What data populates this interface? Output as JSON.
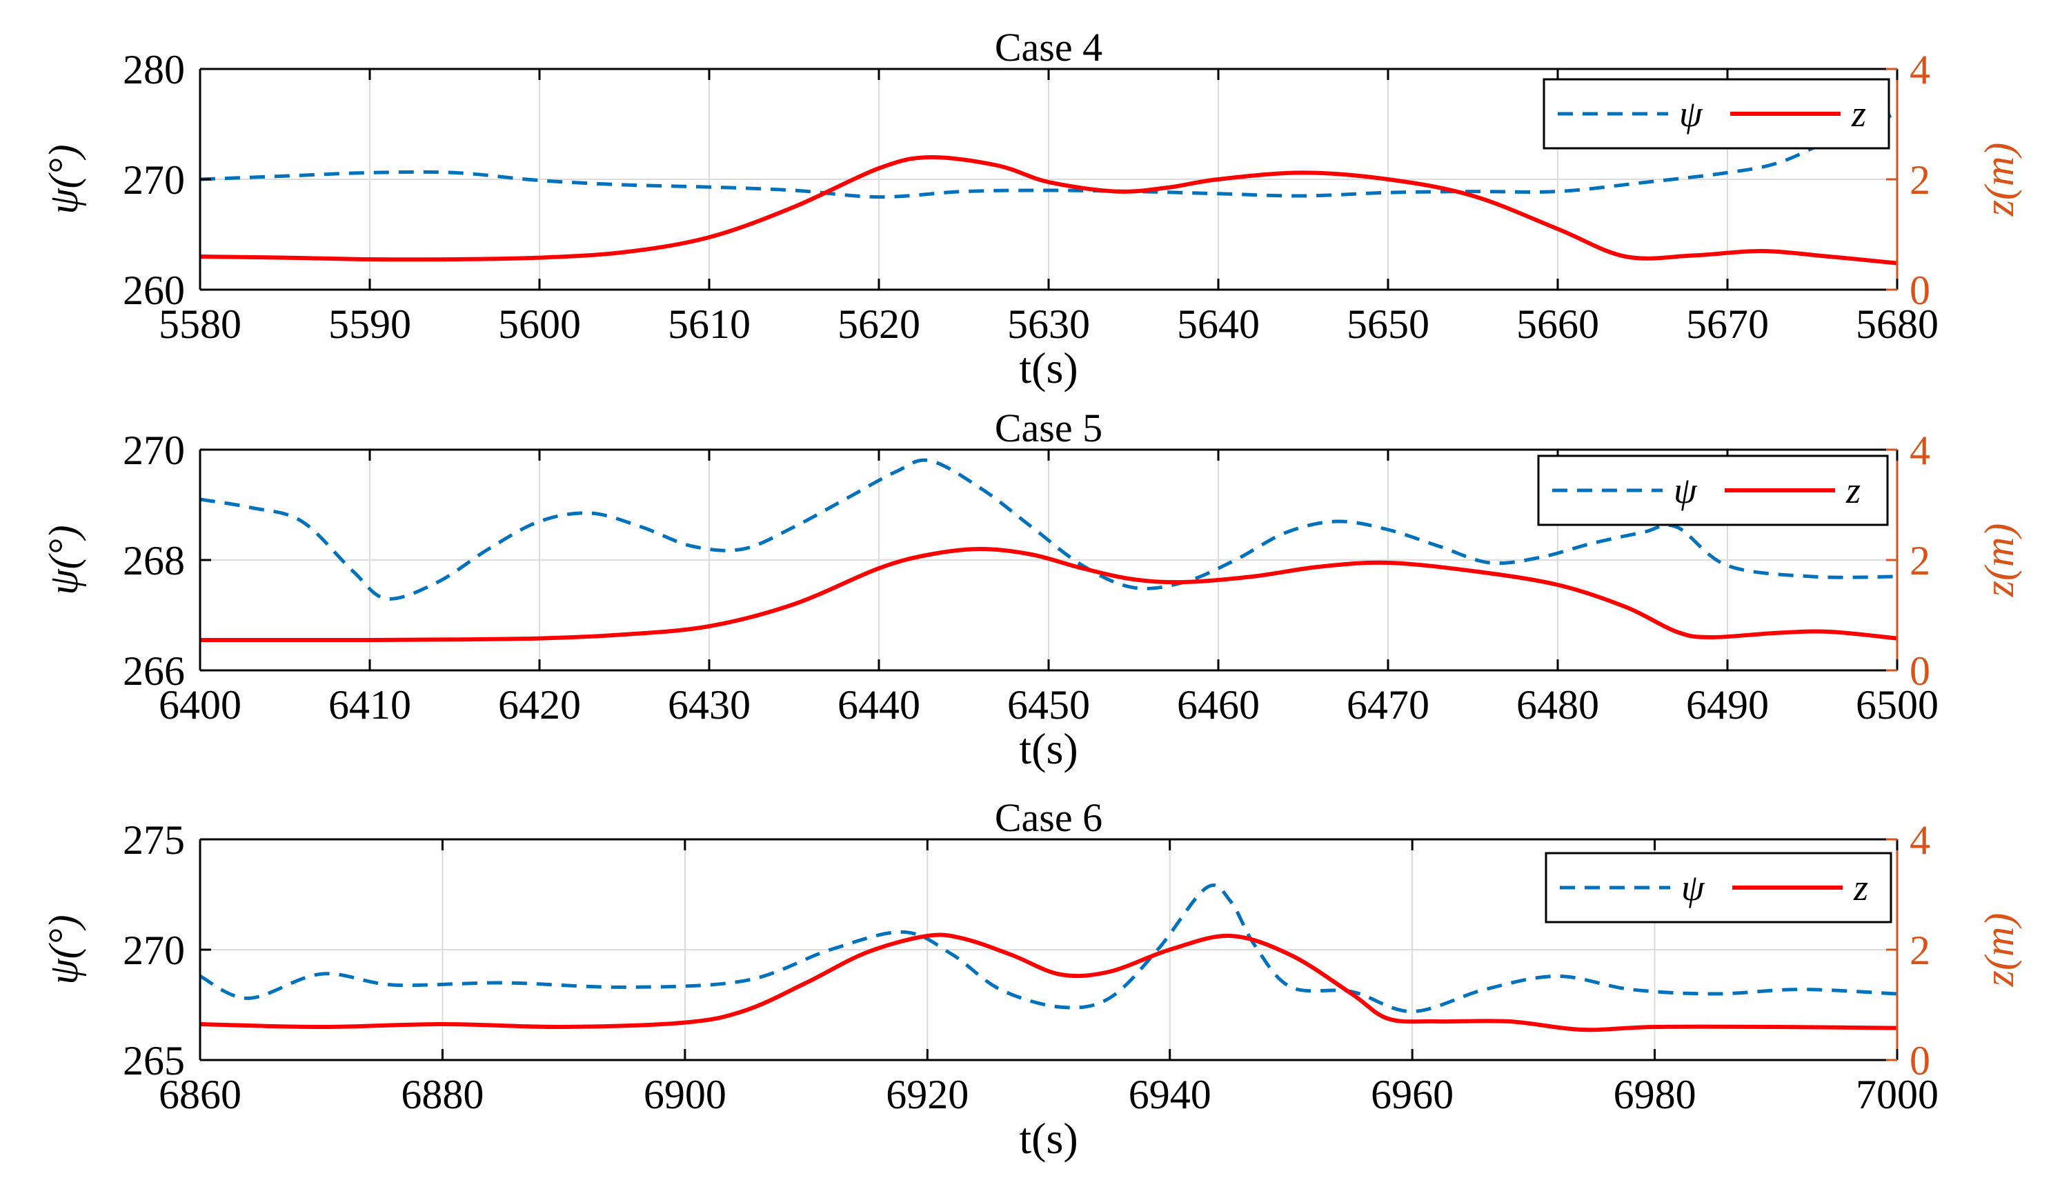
{
  "chart_data": [
    {
      "type": "line",
      "title": "Case 4",
      "xlabel": "t(s)",
      "ylabel": "ψ(°)",
      "ylabel_right": "z(m)",
      "xlim": [
        5580,
        5680
      ],
      "ylim": [
        260,
        280
      ],
      "ylim_right": [
        0,
        4
      ],
      "xticks": [
        5580,
        5590,
        5600,
        5610,
        5620,
        5630,
        5640,
        5650,
        5660,
        5670,
        5680
      ],
      "yticks": [
        260,
        270,
        280
      ],
      "yticks_right": [
        0,
        2,
        4
      ],
      "grid": true,
      "legend": "top-right",
      "series": [
        {
          "name": "ψ",
          "axis": "left",
          "style": "dashed",
          "color": "#0072bd",
          "x": [
            5580,
            5585,
            5590,
            5595,
            5600,
            5605,
            5610,
            5615,
            5620,
            5625,
            5630,
            5635,
            5640,
            5645,
            5650,
            5655,
            5660,
            5665,
            5670,
            5673,
            5676,
            5680
          ],
          "y": [
            270,
            270.3,
            270.6,
            270.6,
            269.9,
            269.5,
            269.3,
            269.0,
            268.4,
            268.9,
            269.0,
            268.9,
            268.7,
            268.5,
            268.8,
            268.9,
            268.9,
            269.7,
            270.6,
            271.5,
            273.5,
            276.0
          ]
        },
        {
          "name": "z",
          "axis": "right",
          "style": "solid",
          "color": "#ff0000",
          "x": [
            5580,
            5585,
            5590,
            5595,
            5600,
            5605,
            5610,
            5615,
            5620,
            5623,
            5627,
            5630,
            5634,
            5637,
            5640,
            5645,
            5650,
            5655,
            5660,
            5664,
            5668,
            5672,
            5676,
            5680
          ],
          "y": [
            0.6,
            0.58,
            0.55,
            0.55,
            0.58,
            0.68,
            0.95,
            1.5,
            2.2,
            2.4,
            2.25,
            1.95,
            1.78,
            1.85,
            2.0,
            2.12,
            2.0,
            1.7,
            1.1,
            0.6,
            0.62,
            0.7,
            0.6,
            0.48
          ]
        }
      ]
    },
    {
      "type": "line",
      "title": "Case 5",
      "xlabel": "t(s)",
      "ylabel": "ψ(°)",
      "ylabel_right": "z(m)",
      "xlim": [
        6400,
        6500
      ],
      "ylim": [
        266,
        270
      ],
      "ylim_right": [
        0,
        4
      ],
      "xticks": [
        6400,
        6410,
        6420,
        6430,
        6440,
        6450,
        6460,
        6470,
        6480,
        6490,
        6500
      ],
      "yticks": [
        266,
        268,
        270
      ],
      "yticks_right": [
        0,
        2,
        4
      ],
      "grid": true,
      "legend": "top-right",
      "series": [
        {
          "name": "ψ",
          "axis": "left",
          "style": "dashed",
          "color": "#0072bd",
          "x": [
            6400,
            6403,
            6406,
            6409,
            6411,
            6414,
            6417,
            6420,
            6423,
            6426,
            6429,
            6432,
            6435,
            6438,
            6441,
            6443,
            6446,
            6449,
            6452,
            6455,
            6458,
            6461,
            6464,
            6467,
            6470,
            6473,
            6476,
            6479,
            6482,
            6485,
            6487,
            6490,
            6495,
            6500
          ],
          "y": [
            269.1,
            268.95,
            268.7,
            267.8,
            267.3,
            267.6,
            268.2,
            268.7,
            268.85,
            268.6,
            268.25,
            268.2,
            268.6,
            269.1,
            269.6,
            269.8,
            269.3,
            268.6,
            267.9,
            267.5,
            267.6,
            268.0,
            268.5,
            268.7,
            268.55,
            268.25,
            267.95,
            268.05,
            268.3,
            268.5,
            268.6,
            267.9,
            267.7,
            267.7
          ]
        },
        {
          "name": "z",
          "axis": "right",
          "style": "solid",
          "color": "#ff0000",
          "x": [
            6400,
            6405,
            6410,
            6415,
            6420,
            6425,
            6430,
            6435,
            6440,
            6443,
            6446,
            6449,
            6452,
            6455,
            6458,
            6462,
            6466,
            6470,
            6475,
            6480,
            6484,
            6487,
            6489,
            6493,
            6496,
            6500
          ],
          "y": [
            0.55,
            0.55,
            0.55,
            0.56,
            0.58,
            0.65,
            0.8,
            1.2,
            1.85,
            2.1,
            2.2,
            2.1,
            1.85,
            1.65,
            1.6,
            1.7,
            1.88,
            1.95,
            1.8,
            1.55,
            1.15,
            0.7,
            0.6,
            0.68,
            0.7,
            0.58
          ]
        }
      ]
    },
    {
      "type": "line",
      "title": "Case 6",
      "xlabel": "t(s)",
      "ylabel": "ψ(°)",
      "ylabel_right": "z(m)",
      "xlim": [
        6860,
        7000
      ],
      "ylim": [
        265,
        275
      ],
      "ylim_right": [
        0,
        4
      ],
      "xticks": [
        6860,
        6880,
        6900,
        6920,
        6940,
        6960,
        6980,
        7000
      ],
      "yticks": [
        265,
        270,
        275
      ],
      "yticks_right": [
        0,
        2,
        4
      ],
      "grid": true,
      "legend": "top-right",
      "series": [
        {
          "name": "ψ",
          "axis": "left",
          "style": "dashed",
          "color": "#0072bd",
          "x": [
            6860,
            6864,
            6870,
            6876,
            6885,
            6895,
            6905,
            6912,
            6918,
            6922,
            6926,
            6931,
            6935,
            6939,
            6943,
            6945,
            6947,
            6950,
            6955,
            6960,
            6966,
            6972,
            6978,
            6985,
            6992,
            7000
          ],
          "y": [
            268.8,
            267.8,
            268.9,
            268.4,
            268.5,
            268.3,
            268.6,
            270.0,
            270.8,
            269.8,
            268.2,
            267.4,
            267.8,
            270.0,
            272.8,
            272.2,
            270.2,
            268.3,
            268.1,
            267.2,
            268.2,
            268.8,
            268.2,
            268.0,
            268.2,
            268.0
          ]
        },
        {
          "name": "z",
          "axis": "right",
          "style": "solid",
          "color": "#ff0000",
          "x": [
            6860,
            6870,
            6880,
            6890,
            6900,
            6905,
            6910,
            6915,
            6920,
            6923,
            6927,
            6931,
            6935,
            6940,
            6945,
            6950,
            6955,
            6958,
            6962,
            6968,
            6974,
            6980,
            6990,
            7000
          ],
          "y": [
            0.65,
            0.6,
            0.65,
            0.6,
            0.68,
            0.9,
            1.4,
            1.95,
            2.25,
            2.2,
            1.9,
            1.55,
            1.6,
            2.0,
            2.25,
            1.9,
            1.2,
            0.75,
            0.7,
            0.7,
            0.55,
            0.6,
            0.6,
            0.58
          ]
        }
      ]
    }
  ]
}
